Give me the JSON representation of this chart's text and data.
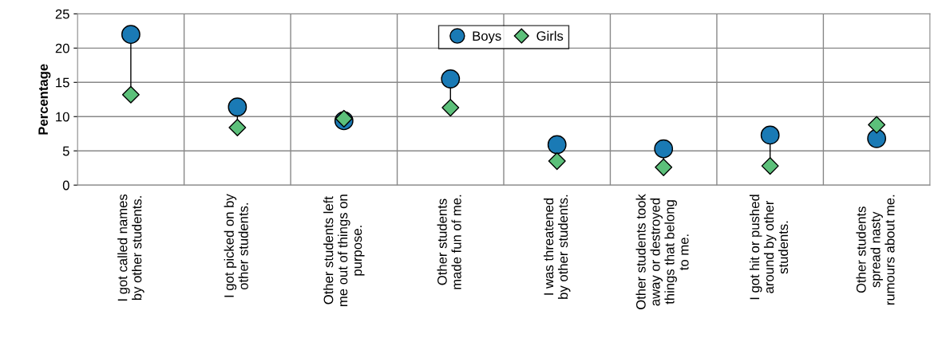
{
  "chart_data": {
    "type": "scatter",
    "ylabel": "Percentage",
    "categories": [
      "I got called names\nby other students.",
      "I got picked on by\nother students.",
      "Other students left\nme out of things on\npurpose.",
      "Other students\nmade fun of me.",
      "I was threatened\nby other students.",
      "Other students took\naway or destroyed\nthings that belong\nto me.",
      "I got hit or pushed\naround by other\nstudents.",
      "Other students\nspread nasty\nrumours about me."
    ],
    "series": [
      {
        "name": "Boys",
        "color": "#1a7ab5",
        "marker": "circle",
        "values": [
          22,
          11.4,
          9.4,
          15.5,
          5.9,
          5.3,
          7.3,
          6.8
        ]
      },
      {
        "name": "Girls",
        "color": "#5cc07a",
        "marker": "diamond",
        "values": [
          13.2,
          8.4,
          9.7,
          11.3,
          3.5,
          2.6,
          2.8,
          8.8
        ]
      }
    ],
    "ylim": [
      0,
      25
    ],
    "yticks": [
      0,
      5,
      10,
      15,
      20,
      25
    ],
    "grid": true,
    "legend": "top"
  }
}
